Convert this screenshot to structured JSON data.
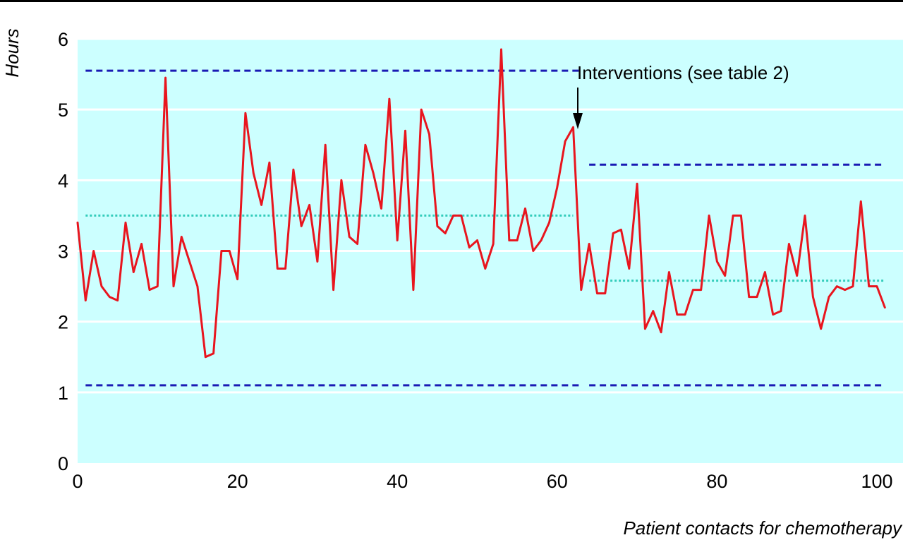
{
  "chart_data": {
    "type": "line",
    "title": "",
    "xlabel": "Patient contacts for chemotherapy",
    "ylabel": "Hours",
    "xlim": [
      0,
      102
    ],
    "ylim": [
      0,
      6
    ],
    "x_ticks": [
      0,
      20,
      40,
      60,
      80,
      100
    ],
    "y_ticks": [
      0,
      1,
      2,
      3,
      4,
      5,
      6
    ],
    "grid": "horizontal",
    "annotation": {
      "text": "Interventions (see table 2)",
      "x": 64
    },
    "series": [
      {
        "x": [
          0,
          1,
          2,
          3,
          4,
          5,
          6,
          7,
          8,
          9,
          10,
          11,
          12,
          13,
          14,
          15,
          16,
          17,
          18,
          19,
          20,
          21,
          22,
          23,
          24,
          25,
          26,
          27,
          28,
          29,
          30,
          31,
          32,
          33,
          34,
          35,
          36,
          37,
          38,
          39,
          40,
          41,
          42,
          43,
          44,
          45,
          46,
          47,
          48,
          49,
          50,
          51,
          52,
          53,
          54,
          55,
          56,
          57,
          58,
          59,
          60,
          61,
          62,
          63,
          64,
          65,
          66,
          67,
          68,
          69,
          70,
          71,
          72,
          73,
          74,
          75,
          76,
          77,
          78,
          79,
          80,
          81,
          82,
          83,
          84,
          85,
          86,
          87,
          88,
          89,
          90,
          91,
          92,
          93,
          94,
          95,
          96,
          97,
          98,
          99,
          100,
          101
        ],
        "values": [
          3.4,
          2.3,
          3.0,
          2.5,
          2.35,
          2.3,
          3.4,
          2.7,
          3.1,
          2.45,
          2.5,
          5.45,
          2.5,
          3.2,
          2.85,
          2.5,
          1.5,
          1.55,
          3.0,
          3.0,
          2.6,
          4.95,
          4.1,
          3.65,
          4.25,
          2.75,
          2.75,
          4.15,
          3.35,
          3.65,
          2.85,
          4.5,
          2.45,
          4.0,
          3.2,
          3.1,
          4.5,
          4.1,
          3.6,
          5.15,
          3.15,
          4.7,
          2.45,
          5.0,
          4.65,
          3.35,
          3.25,
          3.5,
          3.5,
          3.05,
          3.15,
          2.75,
          3.1,
          5.85,
          3.15,
          3.15,
          3.6,
          3.0,
          3.15,
          3.4,
          3.9,
          4.55,
          4.75,
          2.45,
          3.1,
          2.4,
          2.4,
          3.25,
          3.3,
          2.75,
          3.95,
          1.9,
          2.15,
          1.85,
          2.7,
          2.1,
          2.1,
          2.45,
          2.45,
          3.5,
          2.85,
          2.65,
          3.5,
          3.5,
          2.35,
          2.35,
          2.7,
          2.1,
          2.15,
          3.1,
          2.65,
          3.5,
          2.35,
          1.9,
          2.35,
          2.5,
          2.45,
          2.5,
          3.7,
          2.5,
          2.5,
          2.2
        ]
      }
    ],
    "reference_lines": [
      {
        "y": 5.55,
        "x": [
          1,
          63
        ],
        "style": "dashed",
        "color": "#1a1ab4"
      },
      {
        "y": 3.5,
        "x": [
          1,
          62
        ],
        "style": "dotted",
        "color": "#33ccbb"
      },
      {
        "y": 1.1,
        "x": [
          1,
          63
        ],
        "style": "dashed",
        "color": "#1a1ab4"
      },
      {
        "y": 4.22,
        "x": [
          64,
          101
        ],
        "style": "dashed",
        "color": "#1a1ab4"
      },
      {
        "y": 2.58,
        "x": [
          64,
          101
        ],
        "style": "dotted",
        "color": "#33ccbb"
      },
      {
        "y": 1.1,
        "x": [
          64,
          101
        ],
        "style": "dashed",
        "color": "#1a1ab4"
      }
    ],
    "colors": {
      "plot_background": "#ccffff",
      "line": "#e8151e",
      "grid": "#ffffff"
    }
  }
}
